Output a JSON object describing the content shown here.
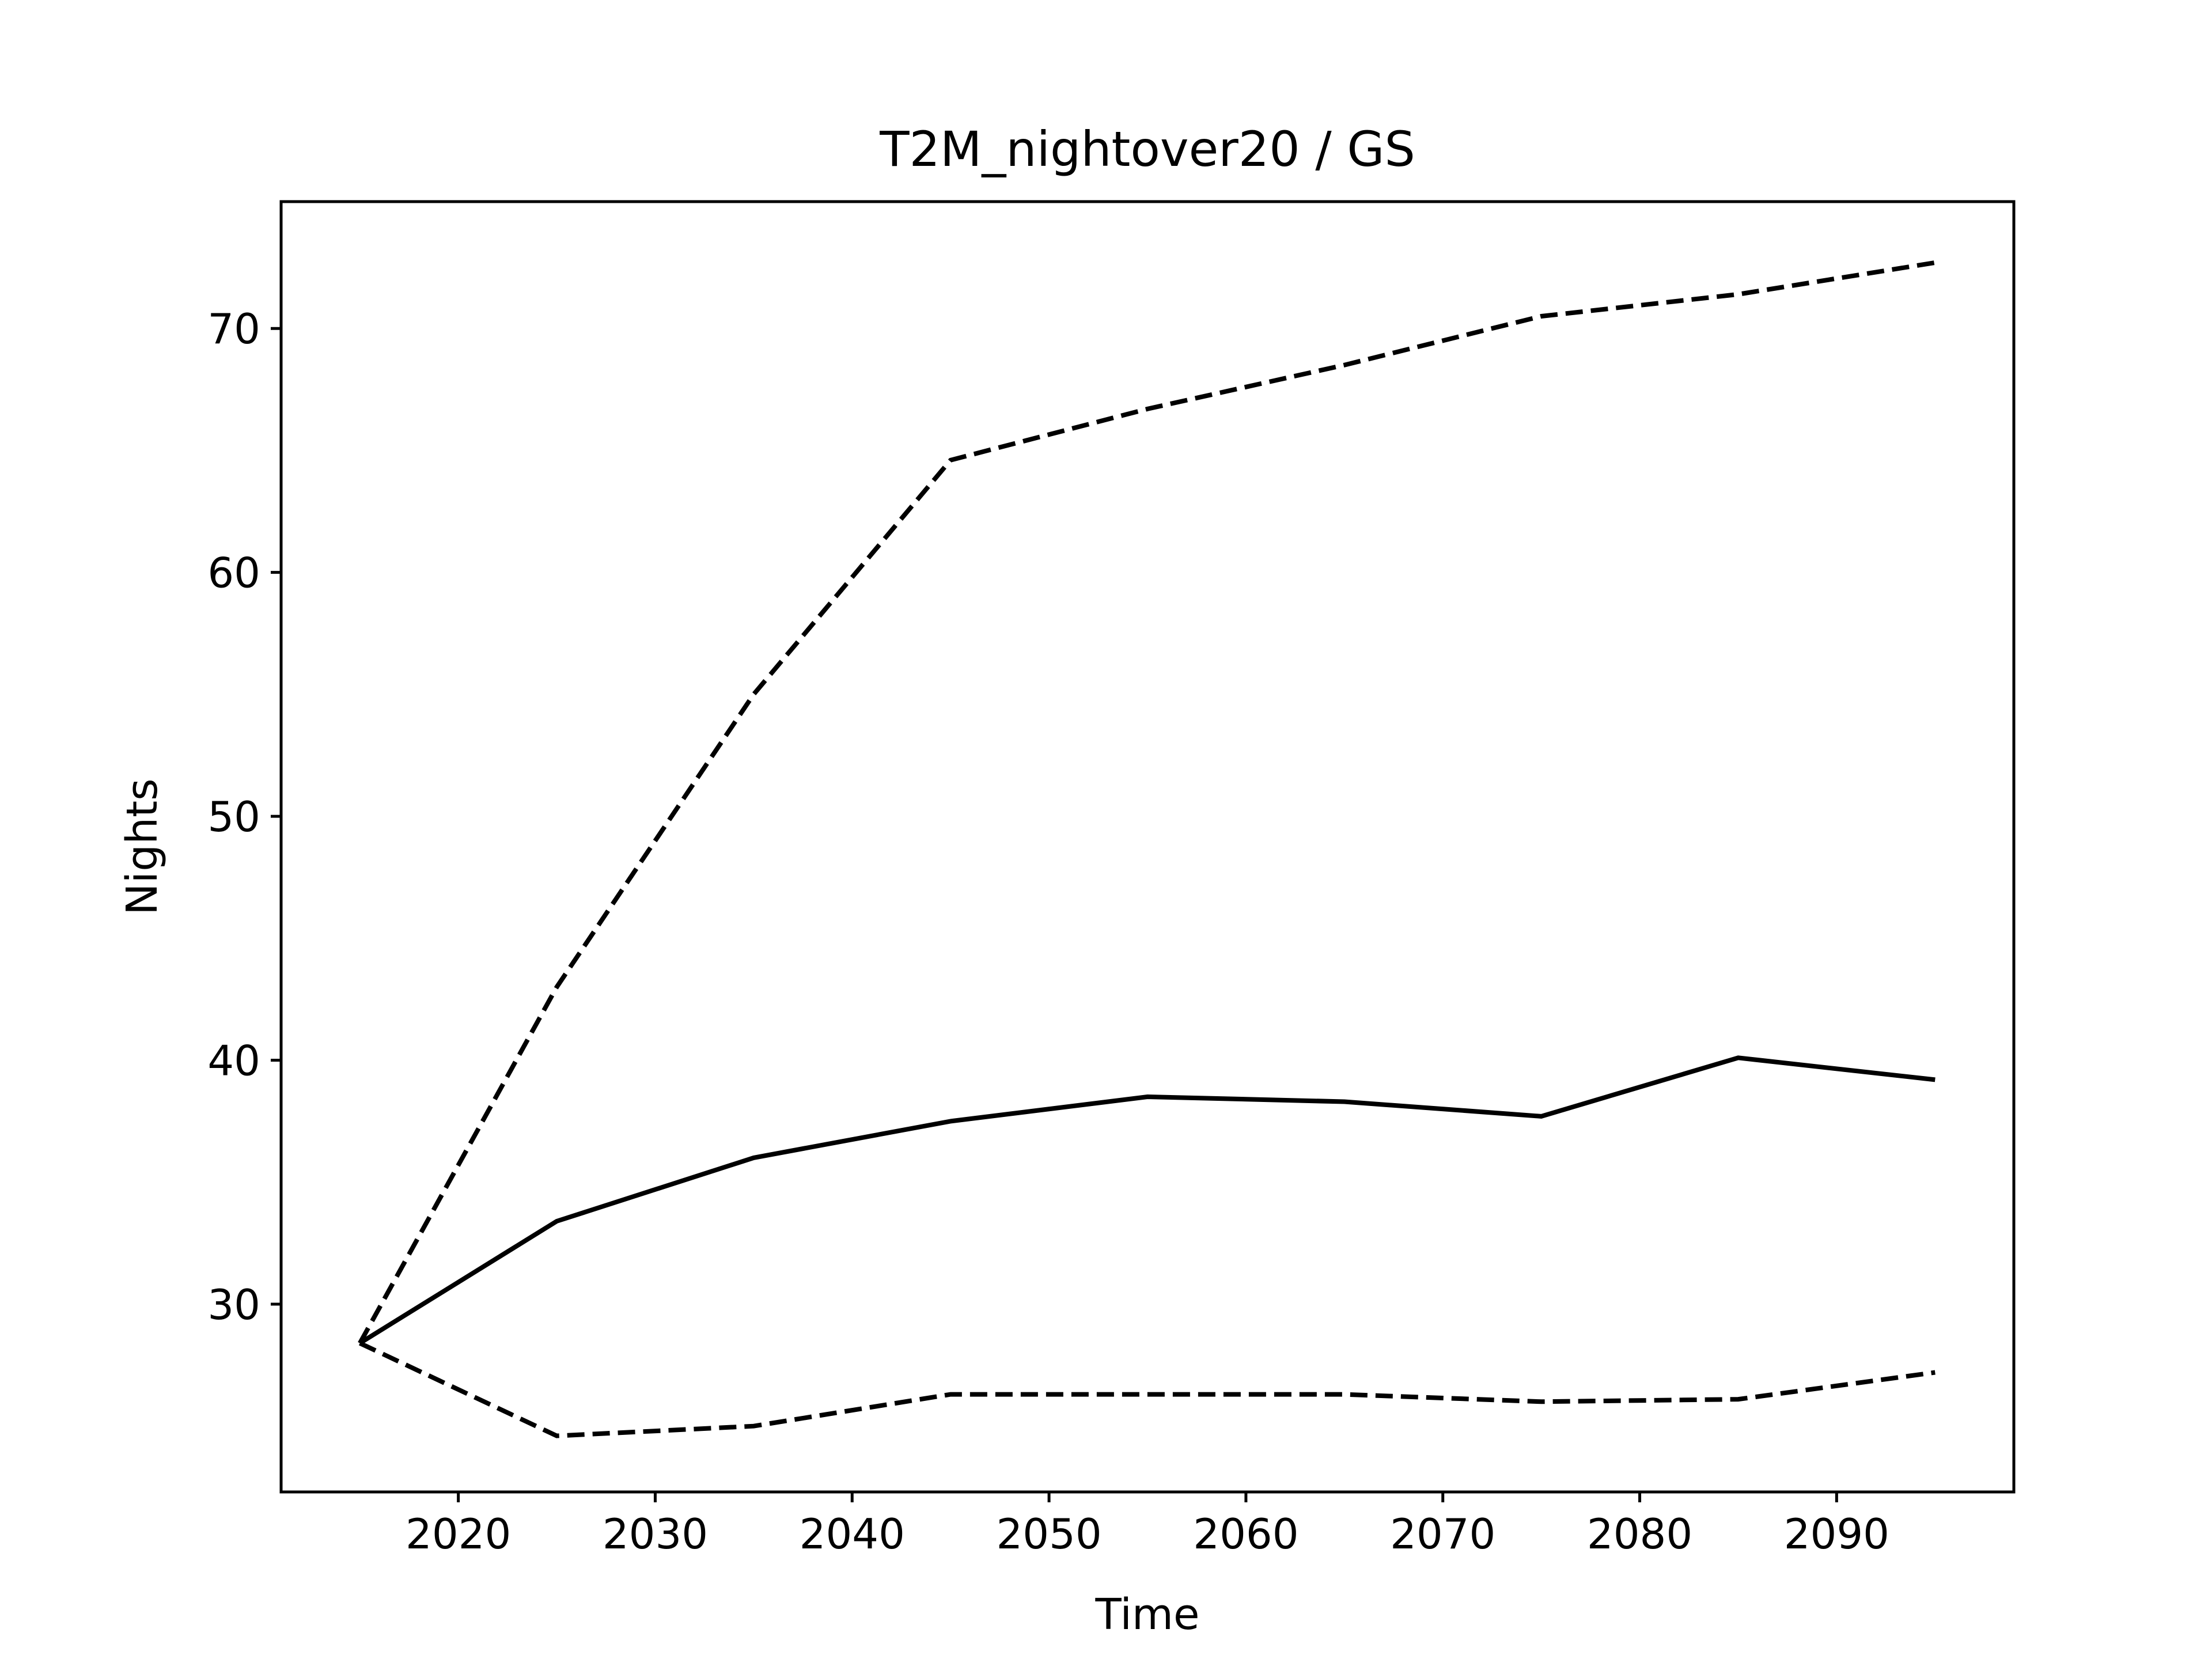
{
  "chart_data": {
    "type": "line",
    "title": "T2M_nightover20 / GS",
    "xlabel": "Time",
    "ylabel": "Nights",
    "xlim": [
      2011,
      2099
    ],
    "ylim": [
      22.3,
      75.2
    ],
    "x_ticks": [
      2020,
      2030,
      2040,
      2050,
      2060,
      2070,
      2080,
      2090
    ],
    "y_ticks": [
      30,
      40,
      50,
      60,
      70
    ],
    "grid": false,
    "legend": "none",
    "line_color": "#000000",
    "x": [
      2015,
      2025,
      2035,
      2045,
      2055,
      2065,
      2075,
      2085,
      2095
    ],
    "series": [
      {
        "style": "dashed",
        "values": [
          28.4,
          43.0,
          55.0,
          64.6,
          66.7,
          68.5,
          70.5,
          71.4,
          72.7
        ]
      },
      {
        "style": "solid",
        "values": [
          28.4,
          33.4,
          36.0,
          37.5,
          38.5,
          38.3,
          37.7,
          40.1,
          39.2
        ]
      },
      {
        "style": "dashed",
        "values": [
          28.4,
          24.6,
          25.0,
          26.3,
          26.3,
          26.3,
          26.0,
          26.1,
          27.2
        ]
      }
    ]
  }
}
